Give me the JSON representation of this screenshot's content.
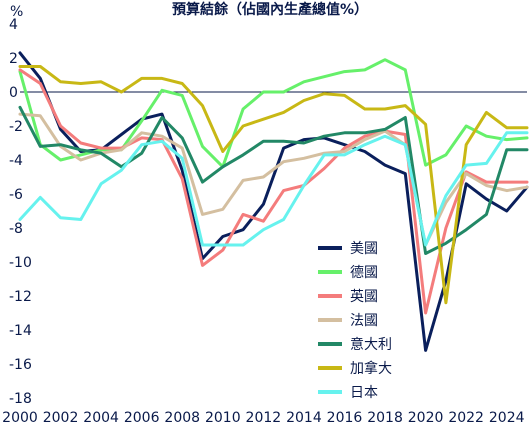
{
  "chart_data": {
    "type": "line",
    "title": "預算結餘（佔國內生產總值%）",
    "ylabel": "%",
    "xlabel": "",
    "xlim": [
      2000,
      2025
    ],
    "ylim": [
      -18,
      4
    ],
    "x_ticks": [
      "2000",
      "2002",
      "2004",
      "2006",
      "2008",
      "2010",
      "2012",
      "2014",
      "2016",
      "2018",
      "2020",
      "2022",
      "2024"
    ],
    "y_ticks": [
      "4",
      "2",
      "0",
      "-2",
      "-4",
      "-6",
      "-8",
      "-10",
      "-12",
      "-14",
      "-16",
      "-18"
    ],
    "grid": false,
    "legend_position": "right",
    "series": [
      {
        "name": "美國",
        "color": "#0a1f5c",
        "x": [
          2000,
          2001,
          2002,
          2003,
          2004,
          2005,
          2006,
          2007,
          2008,
          2009,
          2010,
          2011,
          2012,
          2013,
          2014,
          2015,
          2016,
          2017,
          2018,
          2019,
          2020,
          2021,
          2022,
          2023,
          2024,
          2025
        ],
        "values": [
          2.3,
          0.8,
          -2.2,
          -3.5,
          -3.4,
          -2.5,
          -1.6,
          -1.3,
          -4.6,
          -9.8,
          -8.5,
          -8.1,
          -6.6,
          -3.3,
          -2.8,
          -2.7,
          -3.1,
          -3.5,
          -4.3,
          -4.8,
          -15.2,
          -11.1,
          -5.4,
          -6.3,
          -7.0,
          -5.6
        ]
      },
      {
        "name": "德國",
        "color": "#66f06a",
        "x": [
          2000,
          2001,
          2002,
          2003,
          2004,
          2005,
          2006,
          2007,
          2008,
          2009,
          2010,
          2011,
          2012,
          2013,
          2014,
          2015,
          2016,
          2017,
          2018,
          2019,
          2020,
          2021,
          2022,
          2023,
          2024,
          2025
        ],
        "values": [
          1.2,
          -3.1,
          -4.0,
          -3.7,
          -3.4,
          -3.4,
          -1.7,
          0.1,
          -0.2,
          -3.2,
          -4.4,
          -1.0,
          0.0,
          0.0,
          0.6,
          0.9,
          1.2,
          1.3,
          1.9,
          1.3,
          -4.3,
          -3.7,
          -2.0,
          -2.6,
          -2.8,
          -2.7
        ]
      },
      {
        "name": "英國",
        "color": "#f47c7c",
        "x": [
          2000,
          2001,
          2002,
          2003,
          2004,
          2005,
          2006,
          2007,
          2008,
          2009,
          2010,
          2011,
          2012,
          2013,
          2014,
          2015,
          2016,
          2017,
          2018,
          2019,
          2020,
          2021,
          2022,
          2023,
          2024,
          2025
        ],
        "values": [
          1.3,
          0.5,
          -2.0,
          -3.0,
          -3.3,
          -3.3,
          -2.7,
          -2.8,
          -5.1,
          -10.2,
          -9.3,
          -7.2,
          -7.6,
          -5.8,
          -5.5,
          -4.5,
          -3.3,
          -2.6,
          -2.3,
          -2.5,
          -13.0,
          -8.0,
          -4.7,
          -5.3,
          -5.3,
          -5.3
        ]
      },
      {
        "name": "法國",
        "color": "#d4bfa0",
        "x": [
          2000,
          2001,
          2002,
          2003,
          2004,
          2005,
          2006,
          2007,
          2008,
          2009,
          2010,
          2011,
          2012,
          2013,
          2014,
          2015,
          2016,
          2017,
          2018,
          2019,
          2020,
          2021,
          2022,
          2023,
          2024,
          2025
        ],
        "values": [
          -1.3,
          -1.4,
          -3.2,
          -4.0,
          -3.6,
          -3.4,
          -2.4,
          -2.6,
          -3.3,
          -7.2,
          -6.9,
          -5.2,
          -5.0,
          -4.1,
          -3.9,
          -3.6,
          -3.5,
          -2.8,
          -2.3,
          -3.1,
          -9.0,
          -6.5,
          -4.8,
          -5.5,
          -5.8,
          -5.6
        ]
      },
      {
        "name": "意大利",
        "color": "#228866",
        "x": [
          2000,
          2001,
          2002,
          2003,
          2004,
          2005,
          2006,
          2007,
          2008,
          2009,
          2010,
          2011,
          2012,
          2013,
          2014,
          2015,
          2016,
          2017,
          2018,
          2019,
          2020,
          2021,
          2022,
          2023,
          2024,
          2025
        ],
        "values": [
          -0.9,
          -3.2,
          -3.1,
          -3.4,
          -3.6,
          -4.4,
          -3.6,
          -1.5,
          -2.7,
          -5.3,
          -4.4,
          -3.7,
          -2.9,
          -2.9,
          -3.0,
          -2.6,
          -2.4,
          -2.4,
          -2.2,
          -1.5,
          -9.5,
          -8.9,
          -8.1,
          -7.2,
          -3.4,
          -3.4
        ]
      },
      {
        "name": "加拿大",
        "color": "#c8b815",
        "x": [
          2000,
          2001,
          2002,
          2003,
          2004,
          2005,
          2006,
          2007,
          2008,
          2009,
          2010,
          2011,
          2012,
          2013,
          2014,
          2015,
          2016,
          2017,
          2018,
          2019,
          2020,
          2021,
          2022,
          2023,
          2024,
          2025
        ],
        "values": [
          1.5,
          1.5,
          0.6,
          0.5,
          0.6,
          0.0,
          0.8,
          0.8,
          0.5,
          -0.8,
          -3.5,
          -2.0,
          -1.6,
          -1.2,
          -0.5,
          -0.1,
          -0.2,
          -1.0,
          -1.0,
          -0.8,
          -1.9,
          -12.4,
          -3.1,
          -1.2,
          -2.1,
          -2.1
        ]
      },
      {
        "name": "日本",
        "color": "#66f2ee",
        "x": [
          2000,
          2001,
          2002,
          2003,
          2004,
          2005,
          2006,
          2007,
          2008,
          2009,
          2010,
          2011,
          2012,
          2013,
          2014,
          2015,
          2016,
          2017,
          2018,
          2019,
          2020,
          2021,
          2022,
          2023,
          2024,
          2025
        ],
        "values": [
          -7.5,
          -6.2,
          -7.4,
          -7.5,
          -5.4,
          -4.6,
          -3.1,
          -2.9,
          -3.9,
          -9.0,
          -9.0,
          -9.0,
          -8.1,
          -7.5,
          -5.5,
          -3.7,
          -3.7,
          -3.1,
          -2.6,
          -3.1,
          -9.0,
          -6.1,
          -4.3,
          -4.2,
          -2.4,
          -2.4
        ]
      }
    ]
  }
}
